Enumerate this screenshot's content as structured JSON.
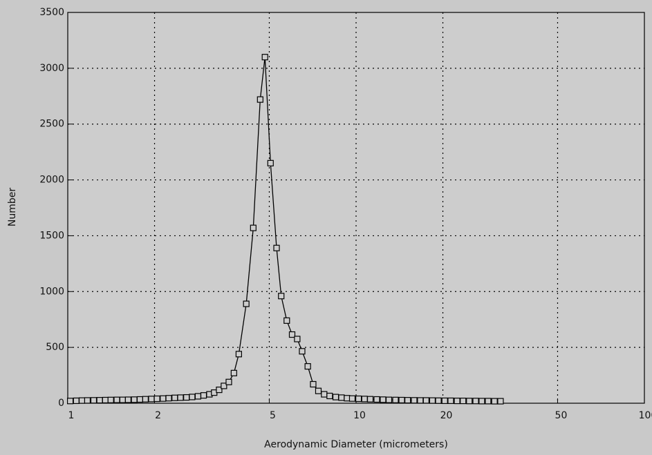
{
  "chart_data": {
    "type": "line",
    "xlabel": "Aerodynamic Diameter (micrometers)",
    "ylabel": "Number",
    "x": [
      1.02,
      1.07,
      1.12,
      1.17,
      1.23,
      1.29,
      1.35,
      1.41,
      1.48,
      1.55,
      1.62,
      1.7,
      1.78,
      1.86,
      1.95,
      2.04,
      2.14,
      2.24,
      2.35,
      2.46,
      2.58,
      2.7,
      2.83,
      2.96,
      3.1,
      3.22,
      3.35,
      3.48,
      3.62,
      3.77,
      3.92,
      4.16,
      4.4,
      4.65,
      4.83,
      5.05,
      5.3,
      5.5,
      5.75,
      6.0,
      6.25,
      6.5,
      6.8,
      7.1,
      7.4,
      7.75,
      8.1,
      8.5,
      8.9,
      9.3,
      9.7,
      10.2,
      10.7,
      11.2,
      11.8,
      12.4,
      13.0,
      13.7,
      14.4,
      15.1,
      15.9,
      16.7,
      17.5,
      18.4,
      19.3,
      20.3,
      21.3,
      22.4,
      23.5,
      24.7,
      26.0,
      27.3,
      28.7,
      30.2,
      31.7
    ],
    "series": [
      {
        "color": "#000000",
        "values": [
          20,
          22,
          24,
          25,
          26,
          27,
          28,
          29,
          30,
          30,
          31,
          32,
          34,
          36,
          38,
          40,
          42,
          45,
          48,
          50,
          52,
          56,
          62,
          70,
          80,
          95,
          120,
          155,
          190,
          270,
          440,
          890,
          1570,
          2720,
          3100,
          2150,
          1390,
          960,
          740,
          615,
          575,
          465,
          330,
          170,
          110,
          80,
          65,
          55,
          50,
          45,
          42,
          40,
          38,
          36,
          34,
          32,
          30,
          29,
          28,
          27,
          26,
          25,
          25,
          24,
          23,
          22,
          22,
          21,
          21,
          20,
          20,
          19,
          19,
          18,
          18
        ]
      }
    ],
    "xscale": "log",
    "xlim": [
      1,
      100
    ],
    "xticks": [
      1,
      2,
      5,
      10,
      20,
      50,
      100
    ],
    "ylim": [
      0,
      3500
    ],
    "yticks": [
      0,
      500,
      1000,
      1500,
      2000,
      2500,
      3000,
      3500
    ],
    "grid": true
  }
}
